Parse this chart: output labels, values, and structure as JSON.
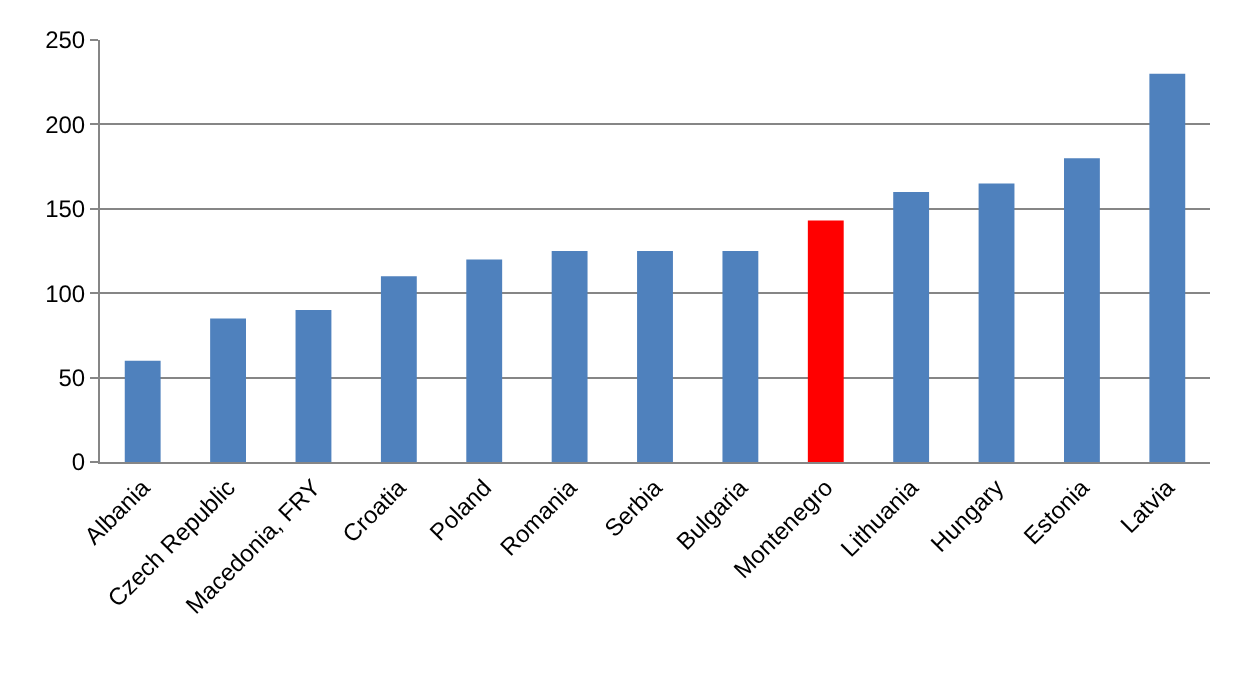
{
  "chart_data": {
    "type": "bar",
    "categories": [
      "Albania",
      "Czech Republic",
      "Macedonia, FRY",
      "Croatia",
      "Poland",
      "Romania",
      "Serbia",
      "Bulgaria",
      "Montenegro",
      "Lithuania",
      "Hungary",
      "Estonia",
      "Latvia"
    ],
    "values": [
      60,
      85,
      90,
      110,
      120,
      125,
      125,
      125,
      143,
      160,
      165,
      180,
      230
    ],
    "colors": [
      "#4f81bd",
      "#4f81bd",
      "#4f81bd",
      "#4f81bd",
      "#4f81bd",
      "#4f81bd",
      "#4f81bd",
      "#4f81bd",
      "#ff0000",
      "#4f81bd",
      "#4f81bd",
      "#4f81bd",
      "#4f81bd"
    ],
    "ylim": [
      0,
      250
    ],
    "yticks": [
      0,
      50,
      100,
      150,
      200,
      250
    ],
    "grid": "y"
  }
}
